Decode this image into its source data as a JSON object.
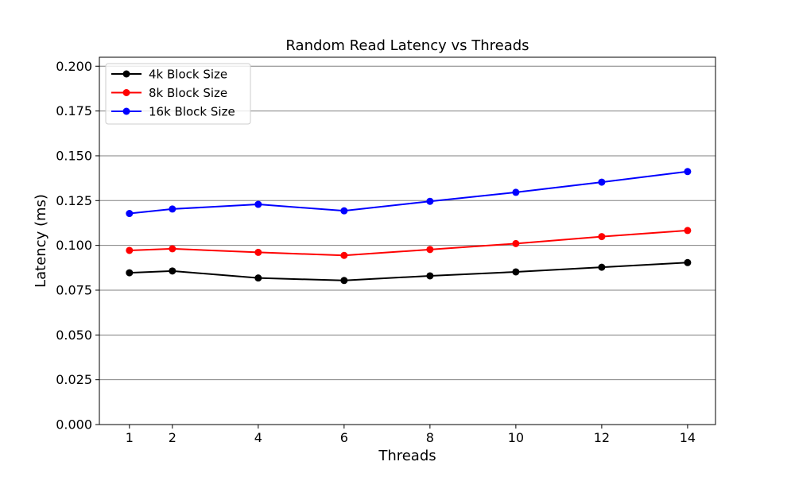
{
  "chart_data": {
    "type": "line",
    "title": "Random Read Latency vs Threads",
    "xlabel": "Threads",
    "ylabel": "Latency (ms)",
    "x": [
      1,
      2,
      4,
      6,
      8,
      10,
      12,
      14
    ],
    "xticks": [
      1,
      2,
      4,
      6,
      8,
      10,
      12,
      14
    ],
    "xlim": [
      0.3,
      14.65
    ],
    "ylim": [
      0.0,
      0.205
    ],
    "yticks": [
      0.0,
      0.025,
      0.05,
      0.075,
      0.1,
      0.125,
      0.15,
      0.175,
      0.2
    ],
    "ytick_labels": [
      "0.000",
      "0.025",
      "0.050",
      "0.075",
      "0.100",
      "0.125",
      "0.150",
      "0.175",
      "0.200"
    ],
    "grid": "horizontal",
    "grid_color": "#808080",
    "legend_position": "upper-left",
    "series": [
      {
        "name": "4k Block Size",
        "color": "#000000",
        "marker": "circle",
        "values": [
          0.0847,
          0.0857,
          0.0818,
          0.0804,
          0.083,
          0.0852,
          0.0878,
          0.0904
        ]
      },
      {
        "name": "8k Block Size",
        "color": "#ff0000",
        "marker": "circle",
        "values": [
          0.0972,
          0.0981,
          0.0961,
          0.0944,
          0.0977,
          0.101,
          0.1049,
          0.1083
        ]
      },
      {
        "name": "16k Block Size",
        "color": "#0000ff",
        "marker": "circle",
        "values": [
          0.1178,
          0.1203,
          0.1229,
          0.1193,
          0.1246,
          0.1296,
          0.1353,
          0.1412
        ]
      }
    ]
  }
}
